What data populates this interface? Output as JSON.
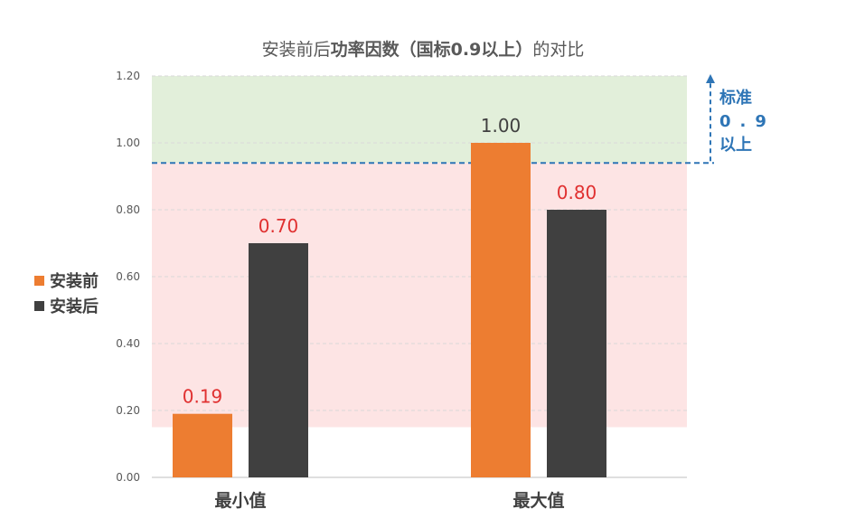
{
  "chart_data": {
    "type": "bar",
    "title_plain": "安装前后",
    "title_bold": "功率因数（国标0.9以上）",
    "title_tail": "的对比",
    "categories": [
      "最小值",
      "最大值"
    ],
    "series": [
      {
        "name": "安装前",
        "values": [
          0.19,
          1.0
        ],
        "labels": [
          "0.19",
          "1.00"
        ],
        "color": "#ed7d31"
      },
      {
        "name": "安装后",
        "values": [
          0.7,
          0.8
        ],
        "labels": [
          "0.70",
          "0.80"
        ],
        "color": "#404040"
      }
    ],
    "ylim": [
      0,
      1.2
    ],
    "yticks": [
      "0.00",
      "0.20",
      "0.40",
      "0.60",
      "0.80",
      "1.00",
      "1.20"
    ],
    "standard_line": 0.94,
    "standard_label": [
      "标准",
      "0.9",
      "以上"
    ],
    "bands": {
      "above_color": "#e2efda",
      "below_color": "#fde4e4",
      "below_from": 0.15,
      "line_color": "#2e75b6"
    },
    "label_color": "#e03030",
    "grid": true,
    "legend_position": "left"
  }
}
